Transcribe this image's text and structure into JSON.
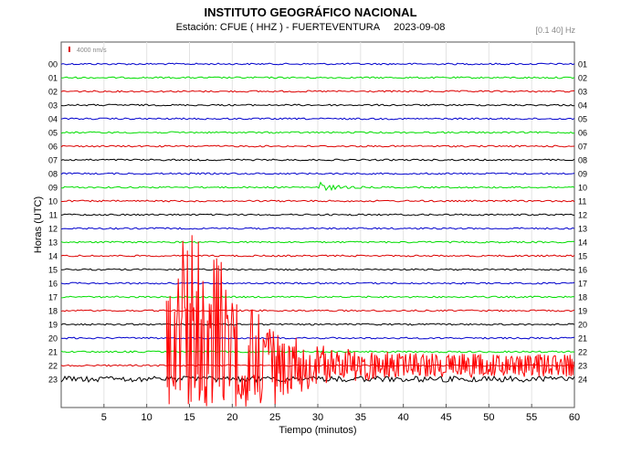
{
  "header": {
    "title": "INSTITUTO GEOGRÁFICO NACIONAL",
    "station": "Estación:  CFUE ( HHZ ) - FUERTEVENTURA",
    "date": "2023-09-08",
    "filter": "[0.1 40] Hz"
  },
  "chart_data": {
    "type": "line",
    "title": "INSTITUTO GEOGRÁFICO NACIONAL",
    "xlabel": "Tiempo (minutos)",
    "ylabel": "Horas (UTC)",
    "xlim": [
      0,
      60
    ],
    "xticks": [
      5,
      10,
      15,
      20,
      25,
      30,
      35,
      40,
      45,
      50,
      55,
      60
    ],
    "left_hours": [
      "00",
      "01",
      "02",
      "03",
      "04",
      "05",
      "06",
      "07",
      "08",
      "09",
      "10",
      "11",
      "12",
      "13",
      "14",
      "15",
      "16",
      "17",
      "18",
      "19",
      "20",
      "21",
      "22",
      "23"
    ],
    "right_hours": [
      "01",
      "02",
      "03",
      "04",
      "05",
      "06",
      "07",
      "08",
      "09",
      "10",
      "11",
      "12",
      "13",
      "14",
      "15",
      "16",
      "17",
      "18",
      "19",
      "20",
      "21",
      "22",
      "23",
      "24"
    ],
    "trace_colors": [
      "#0000cc",
      "#00dd00",
      "#dd0000",
      "#000000"
    ],
    "scale_label": "4000 nm/s",
    "scale_color": "#dd0000",
    "grid": true,
    "events": [
      {
        "hour": "09",
        "onset_minute": 29.9,
        "type": "small local event"
      },
      {
        "hour": "22",
        "onset_minute": 12.3,
        "type": "large teleseismic earthquake, coda to 60 min"
      }
    ]
  }
}
